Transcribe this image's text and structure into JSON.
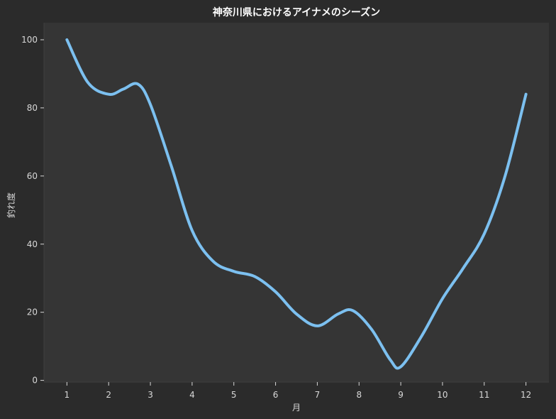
{
  "chart_data": {
    "type": "line",
    "title": "神奈川県におけるアイナメのシーズン",
    "xlabel": "月",
    "ylabel": "釣れ度",
    "x": [
      1,
      2,
      3,
      4,
      5,
      6,
      7,
      8,
      9,
      10,
      11,
      12
    ],
    "x_tick_labels": [
      "1",
      "2",
      "3",
      "4",
      "5",
      "6",
      "7",
      "8",
      "9",
      "10",
      "11",
      "12"
    ],
    "y_ticks": [
      0,
      20,
      40,
      60,
      80,
      100
    ],
    "y_tick_labels": [
      "0",
      "20",
      "40",
      "60",
      "80",
      "100"
    ],
    "xlim": [
      0.45,
      12.55
    ],
    "ylim": [
      -0.5,
      105
    ],
    "grid": false,
    "series": [
      {
        "color": "#7cc0f0",
        "points": [
          [
            1,
            100
          ],
          [
            1.5,
            87.5
          ],
          [
            2,
            84
          ],
          [
            2.35,
            85.5
          ],
          [
            2.7,
            87
          ],
          [
            3,
            81
          ],
          [
            3.5,
            63
          ],
          [
            4,
            44
          ],
          [
            4.5,
            35
          ],
          [
            5,
            32
          ],
          [
            5.5,
            30.5
          ],
          [
            6,
            26
          ],
          [
            6.5,
            19.5
          ],
          [
            7,
            16
          ],
          [
            7.5,
            19.5
          ],
          [
            7.85,
            20.5
          ],
          [
            8.3,
            15
          ],
          [
            8.75,
            6
          ],
          [
            9,
            4
          ],
          [
            9.5,
            13
          ],
          [
            10,
            24
          ],
          [
            10.5,
            33
          ],
          [
            11,
            43
          ],
          [
            11.5,
            60
          ],
          [
            12,
            84
          ]
        ]
      }
    ],
    "colors": {
      "figure_background": "#2b2b2b",
      "plot_background": "#353535",
      "line": "#7cc0f0",
      "text": "#d8d8d8",
      "title": "#ffffff"
    }
  }
}
